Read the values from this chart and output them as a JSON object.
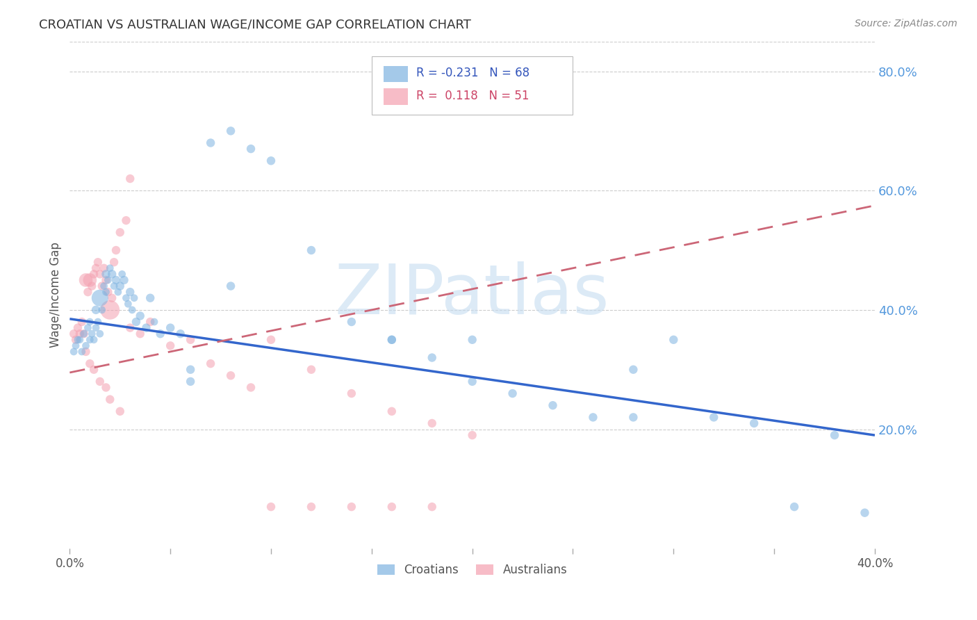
{
  "title": "CROATIAN VS AUSTRALIAN WAGE/INCOME GAP CORRELATION CHART",
  "source": "Source: ZipAtlas.com",
  "ylabel": "Wage/Income Gap",
  "xlim": [
    0.0,
    0.4
  ],
  "ylim": [
    0.0,
    0.85
  ],
  "yticks": [
    0.2,
    0.4,
    0.6,
    0.8
  ],
  "ytick_labels": [
    "20.0%",
    "40.0%",
    "60.0%",
    "80.0%"
  ],
  "xtick_labels_show": [
    "0.0%",
    "40.0%"
  ],
  "xtick_positions_show": [
    0.0,
    0.4
  ],
  "xtick_minor": [
    0.05,
    0.1,
    0.15,
    0.2,
    0.25,
    0.3,
    0.35
  ],
  "blue_color": "#7EB3E0",
  "pink_color": "#F4A0B0",
  "blue_trend_color": "#3366CC",
  "pink_trend_color": "#CC6677",
  "blue_R": -0.231,
  "blue_N": 68,
  "pink_R": 0.118,
  "pink_N": 51,
  "blue_label": "Croatians",
  "pink_label": "Australians",
  "watermark": "ZIPatlas",
  "watermark_color": "#C5DCF0",
  "background_color": "#FFFFFF",
  "blue_trend_x0": 0.0,
  "blue_trend_y0": 0.385,
  "blue_trend_x1": 0.4,
  "blue_trend_y1": 0.19,
  "pink_trend_x0": 0.0,
  "pink_trend_y0": 0.295,
  "pink_trend_x1": 0.4,
  "pink_trend_y1": 0.575,
  "blue_scatter_x": [
    0.002,
    0.003,
    0.004,
    0.005,
    0.006,
    0.007,
    0.008,
    0.009,
    0.01,
    0.01,
    0.011,
    0.012,
    0.013,
    0.013,
    0.014,
    0.015,
    0.015,
    0.016,
    0.017,
    0.018,
    0.018,
    0.019,
    0.02,
    0.021,
    0.022,
    0.023,
    0.024,
    0.025,
    0.026,
    0.027,
    0.028,
    0.029,
    0.03,
    0.031,
    0.032,
    0.033,
    0.035,
    0.038,
    0.04,
    0.042,
    0.045,
    0.05,
    0.055,
    0.06,
    0.07,
    0.08,
    0.09,
    0.1,
    0.12,
    0.14,
    0.16,
    0.18,
    0.2,
    0.22,
    0.24,
    0.26,
    0.28,
    0.3,
    0.32,
    0.34,
    0.36,
    0.38,
    0.395,
    0.16,
    0.2,
    0.28,
    0.06,
    0.08
  ],
  "blue_scatter_y": [
    0.33,
    0.34,
    0.35,
    0.35,
    0.33,
    0.36,
    0.34,
    0.37,
    0.35,
    0.38,
    0.36,
    0.35,
    0.37,
    0.4,
    0.38,
    0.36,
    0.42,
    0.4,
    0.44,
    0.43,
    0.46,
    0.45,
    0.47,
    0.46,
    0.44,
    0.45,
    0.43,
    0.44,
    0.46,
    0.45,
    0.42,
    0.41,
    0.43,
    0.4,
    0.42,
    0.38,
    0.39,
    0.37,
    0.42,
    0.38,
    0.36,
    0.37,
    0.36,
    0.3,
    0.68,
    0.7,
    0.67,
    0.65,
    0.5,
    0.38,
    0.35,
    0.32,
    0.28,
    0.26,
    0.24,
    0.22,
    0.3,
    0.35,
    0.22,
    0.21,
    0.07,
    0.19,
    0.06,
    0.35,
    0.35,
    0.22,
    0.28,
    0.44
  ],
  "blue_scatter_size": [
    60,
    60,
    60,
    60,
    60,
    60,
    60,
    60,
    60,
    60,
    60,
    60,
    60,
    80,
    60,
    60,
    300,
    60,
    60,
    60,
    80,
    60,
    60,
    80,
    60,
    80,
    60,
    80,
    60,
    80,
    60,
    60,
    80,
    60,
    60,
    80,
    80,
    80,
    80,
    60,
    80,
    80,
    80,
    80,
    80,
    80,
    80,
    80,
    80,
    80,
    80,
    80,
    80,
    80,
    80,
    80,
    80,
    80,
    80,
    80,
    80,
    80,
    80,
    80,
    80,
    80,
    80,
    80
  ],
  "pink_scatter_x": [
    0.002,
    0.003,
    0.004,
    0.005,
    0.006,
    0.007,
    0.008,
    0.009,
    0.01,
    0.011,
    0.012,
    0.013,
    0.014,
    0.015,
    0.016,
    0.017,
    0.018,
    0.019,
    0.02,
    0.021,
    0.022,
    0.023,
    0.025,
    0.028,
    0.03,
    0.035,
    0.04,
    0.05,
    0.06,
    0.07,
    0.08,
    0.09,
    0.1,
    0.12,
    0.14,
    0.16,
    0.18,
    0.2,
    0.008,
    0.01,
    0.012,
    0.015,
    0.018,
    0.02,
    0.025,
    0.03,
    0.1,
    0.12,
    0.14,
    0.16,
    0.18
  ],
  "pink_scatter_y": [
    0.36,
    0.35,
    0.37,
    0.36,
    0.38,
    0.36,
    0.45,
    0.43,
    0.45,
    0.44,
    0.46,
    0.47,
    0.48,
    0.46,
    0.44,
    0.47,
    0.45,
    0.43,
    0.4,
    0.42,
    0.48,
    0.5,
    0.53,
    0.55,
    0.37,
    0.36,
    0.38,
    0.34,
    0.35,
    0.31,
    0.29,
    0.27,
    0.35,
    0.3,
    0.26,
    0.23,
    0.21,
    0.19,
    0.33,
    0.31,
    0.3,
    0.28,
    0.27,
    0.25,
    0.23,
    0.62,
    0.07,
    0.07,
    0.07,
    0.07,
    0.07
  ],
  "pink_scatter_size": [
    80,
    80,
    80,
    80,
    80,
    80,
    200,
    80,
    200,
    80,
    80,
    80,
    80,
    80,
    80,
    80,
    80,
    80,
    400,
    80,
    80,
    80,
    80,
    80,
    80,
    80,
    80,
    80,
    80,
    80,
    80,
    80,
    80,
    80,
    80,
    80,
    80,
    80,
    80,
    80,
    80,
    80,
    80,
    80,
    80,
    80,
    80,
    80,
    80,
    80,
    80
  ]
}
